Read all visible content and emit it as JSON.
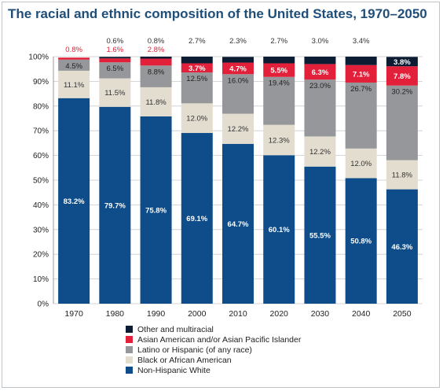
{
  "chart_data": {
    "type": "bar",
    "stacked": true,
    "title": "The racial and ethnic composition of the United States, 1970–2050",
    "categories": [
      "1970",
      "1980",
      "1990",
      "2000",
      "2010",
      "2020",
      "2030",
      "2040",
      "2050"
    ],
    "ylim": [
      0,
      100
    ],
    "yticks": [
      "0%",
      "10%",
      "20%",
      "30%",
      "40%",
      "50%",
      "60%",
      "70%",
      "80%",
      "90%",
      "100%"
    ],
    "grid": true,
    "legend_position": "bottom",
    "series": [
      {
        "name": "Non-Hispanic White",
        "color": "#0e4c8a",
        "label_color": "#ffffff",
        "values": [
          83.2,
          79.7,
          75.8,
          69.1,
          64.7,
          60.1,
          55.5,
          50.8,
          46.3
        ],
        "labels": [
          "83.2%",
          "79.7%",
          "75.8%",
          "69.1%",
          "64.7%",
          "60.1%",
          "55.5%",
          "50.8%",
          "46.3%"
        ]
      },
      {
        "name": "Black or African American",
        "color": "#e3ddd0",
        "label_color": "#333333",
        "values": [
          11.1,
          11.5,
          11.8,
          12.0,
          12.2,
          12.3,
          12.2,
          12.0,
          11.8
        ],
        "labels": [
          "11.1%",
          "11.5%",
          "11.8%",
          "12.0%",
          "12.2%",
          "12.3%",
          "12.2%",
          "12.0%",
          "11.8%"
        ]
      },
      {
        "name": "Latino or Hispanic (of any race)",
        "color": "#95979a",
        "label_color": "#222222",
        "values": [
          4.5,
          6.5,
          8.8,
          12.5,
          16.0,
          19.4,
          23.0,
          26.7,
          30.2
        ],
        "labels": [
          "4.5%",
          "6.5%",
          "8.8%",
          "12.5%",
          "16.0%",
          "19.4%",
          "23.0%",
          "26.7%",
          "30.2%"
        ]
      },
      {
        "name": "Asian American and/or Asian Pacific Islander",
        "color": "#e2203a",
        "label_color": "#ffffff",
        "values": [
          0.8,
          1.6,
          2.8,
          3.7,
          4.7,
          5.5,
          6.3,
          7.1,
          7.8
        ],
        "labels": [
          "0.8%",
          "1.6%",
          "2.8%",
          "3.7%",
          "4.7%",
          "5.5%",
          "6.3%",
          "7.1%",
          "7.8%"
        ]
      },
      {
        "name": "Other and multiracial",
        "color": "#0b1c33",
        "label_color": "#ffffff",
        "values": [
          0,
          0.6,
          0.8,
          2.7,
          2.3,
          2.7,
          3.0,
          3.4,
          3.8
        ],
        "labels": [
          "",
          "0.6%",
          "0.8%",
          "2.7%",
          "2.3%",
          "2.7%",
          "3.0%",
          "3.4%",
          "3.8%"
        ]
      }
    ],
    "legend_order": [
      "Other and multiracial",
      "Asian American and/or Asian Pacific Islander",
      "Latino or Hispanic (of any race)",
      "Black or African American",
      "Non-Hispanic White"
    ]
  }
}
